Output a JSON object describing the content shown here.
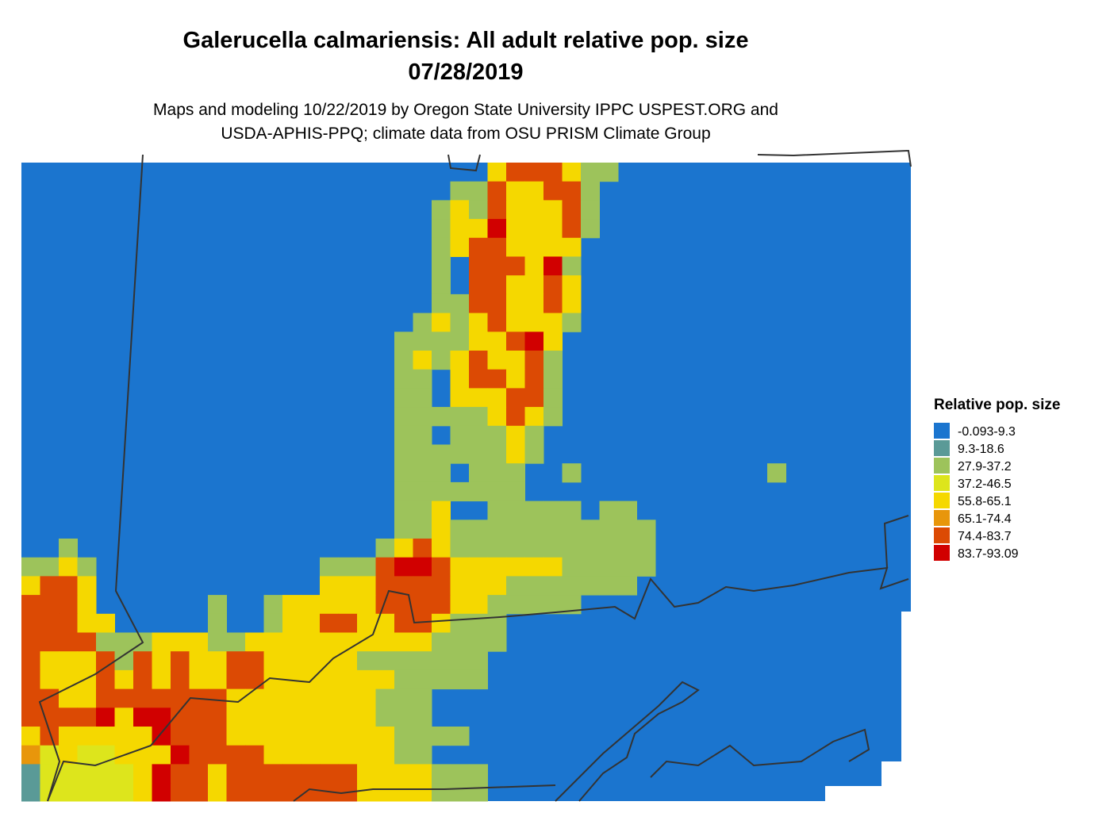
{
  "header": {
    "title": "Galerucella calmariensis: All adult relative pop. size",
    "date": "07/28/2019",
    "subtitle": [
      "Maps and modeling 10/22/2019 by Oregon State University IPPC USPEST.ORG and",
      "USDA-APHIS-PPQ; climate data from OSU PRISM Climate Group"
    ]
  },
  "legend": {
    "title": "Relative pop. size",
    "items": [
      {
        "label": "-0.093-9.3",
        "color": "#1b75cf"
      },
      {
        "label": "9.3-18.6",
        "color": "#5a9a97"
      },
      {
        "label": "27.9-37.2",
        "color": "#9dc35b"
      },
      {
        "label": "37.2-46.5",
        "color": "#dde51c"
      },
      {
        "label": "55.8-65.1",
        "color": "#f5d800"
      },
      {
        "label": "65.1-74.4",
        "color": "#e8960b"
      },
      {
        "label": "74.4-83.7",
        "color": "#dc4a04"
      },
      {
        "label": "83.7-93.09",
        "color": "#d10000"
      }
    ]
  }
}
